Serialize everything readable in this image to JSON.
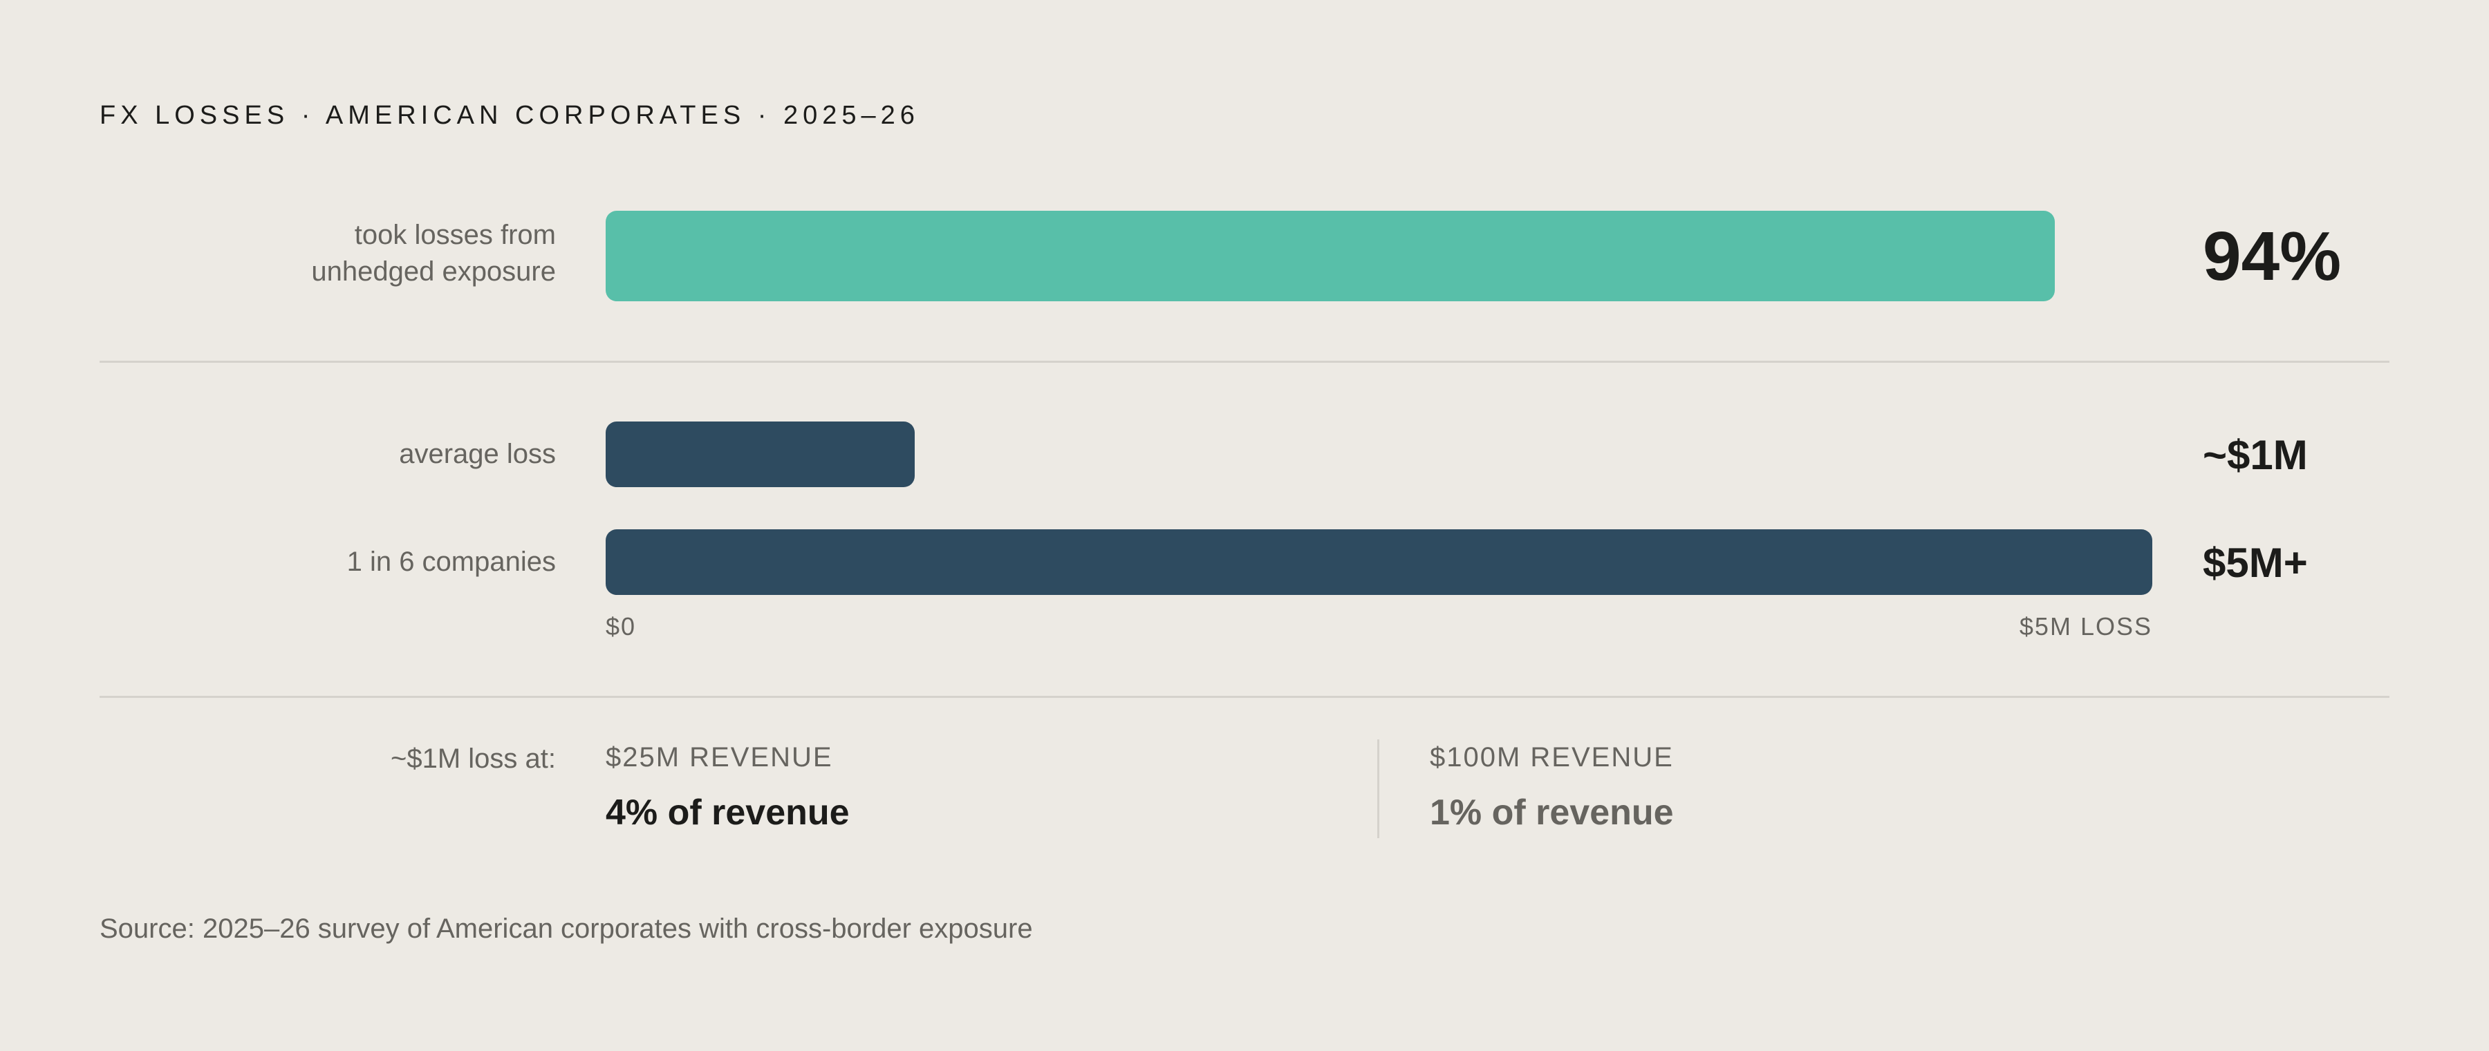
{
  "title": "FX LOSSES · AMERICAN CORPORATES · 2025–26",
  "chart_data": [
    {
      "type": "bar",
      "orientation": "horizontal",
      "categories": [
        "took losses from unhedged exposure"
      ],
      "values": [
        94
      ],
      "unit": "%",
      "value_labels": [
        "94%"
      ],
      "xlim": [
        0,
        100
      ],
      "color": "#58bfa9"
    },
    {
      "type": "bar",
      "orientation": "horizontal",
      "categories": [
        "average loss",
        "1 in 6 companies"
      ],
      "values": [
        1,
        5
      ],
      "unit": "$M",
      "value_labels": [
        "~$1M",
        "$5M+"
      ],
      "xlim": [
        0,
        5
      ],
      "tick_labels": [
        "$0",
        "$5M LOSS"
      ],
      "color": "#2e4b60"
    }
  ],
  "labels": {
    "pct_line1": "took losses from",
    "pct_line2": "unhedged exposure",
    "avg": "average loss",
    "one_in_six": "1 in 6 companies"
  },
  "revenue": {
    "label": "~$1M loss at:",
    "col1": {
      "head": "$25M REVENUE",
      "value": "4% of revenue"
    },
    "col2": {
      "head": "$100M REVENUE",
      "value": "1% of revenue"
    }
  },
  "source": "Source: 2025–26 survey of American corporates with cross-border exposure",
  "colors": {
    "background": "#edeae4",
    "teal": "#58bfa9",
    "navy": "#2e4b60",
    "text_dark": "#1c1c1a",
    "text_muted": "#66645f"
  }
}
